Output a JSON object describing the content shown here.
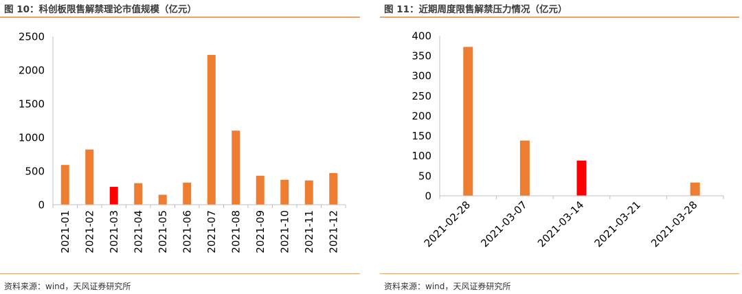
{
  "figures": [
    {
      "title": "图 10：科创板限售解禁理论市值规模（亿元）",
      "source": "资料来源：wind，天风证券研究所"
    },
    {
      "title": "图 11：近期周度限售解禁压力情况（亿元）",
      "source": "资料来源：wind，天风证券研究所"
    }
  ],
  "colors": {
    "bar": "#ed7d31",
    "highlight": "#ff0000",
    "axis": "#bfbfbf",
    "rule": "#e9a46a"
  },
  "chart_data": [
    {
      "type": "bar",
      "title": "图 10：科创板限售解禁理论市值规模（亿元）",
      "categories": [
        "2021-01",
        "2021-02",
        "2021-03",
        "2021-04",
        "2021-05",
        "2021-06",
        "2021-07",
        "2021-08",
        "2021-09",
        "2021-10",
        "2021-11",
        "2021-12"
      ],
      "values": [
        590,
        820,
        265,
        320,
        148,
        328,
        2225,
        1100,
        430,
        370,
        360,
        470
      ],
      "highlight_index": 2,
      "ylim": [
        0,
        2500
      ],
      "yticks": [
        0,
        500,
        1000,
        1500,
        2000,
        2500
      ],
      "tick_label_rotation": "vertical",
      "grid": false,
      "legend": "none"
    },
    {
      "type": "bar",
      "title": "图 11：近期周度限售解禁压力情况（亿元）",
      "categories": [
        "2021-02-28",
        "2021-03-07",
        "2021-03-14",
        "2021-03-21",
        "2021-03-28"
      ],
      "values": [
        372,
        138,
        88,
        0,
        33
      ],
      "highlight_index": 2,
      "ylim": [
        0,
        400
      ],
      "yticks": [
        0,
        50,
        100,
        150,
        200,
        250,
        300,
        350,
        400
      ],
      "tick_label_rotation": "diagonal",
      "grid": false,
      "legend": "none"
    }
  ]
}
